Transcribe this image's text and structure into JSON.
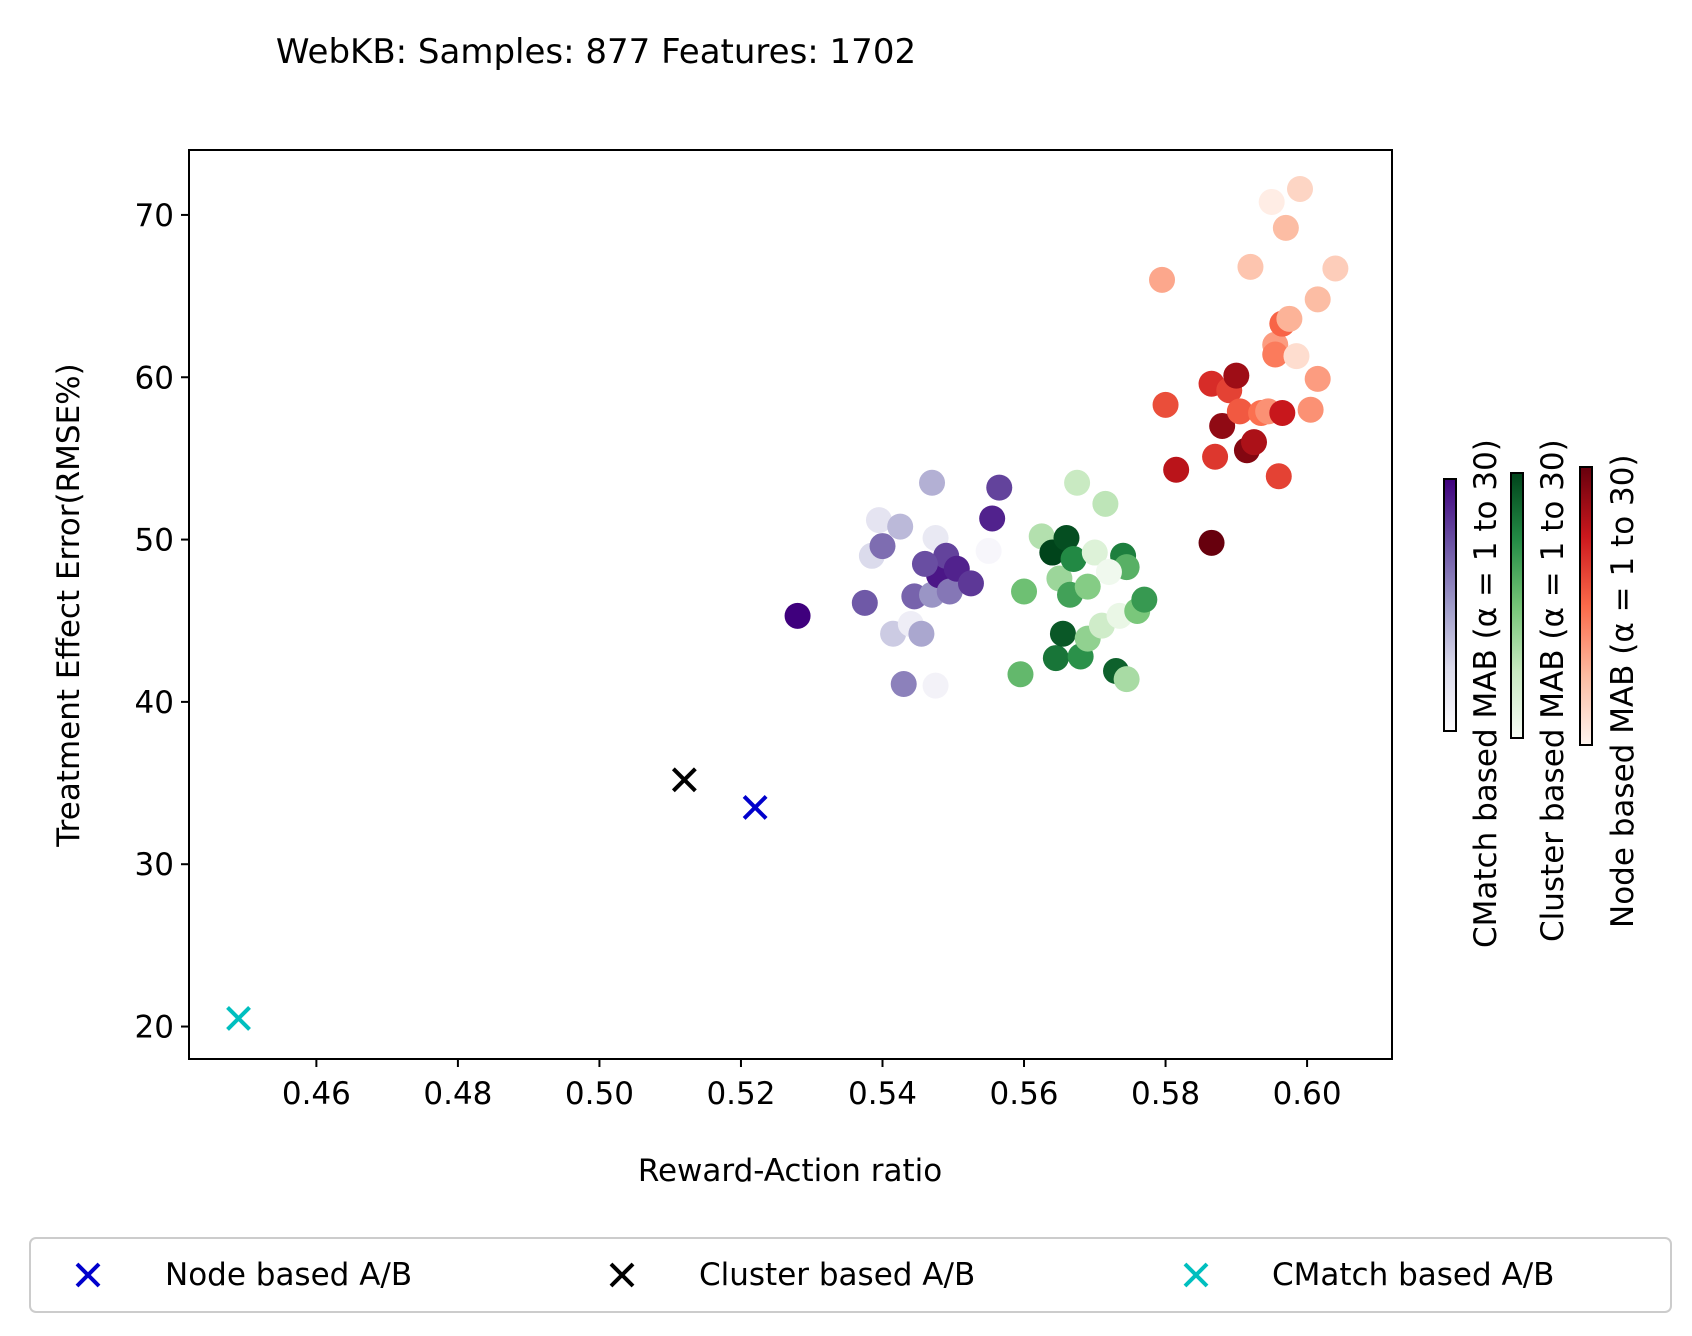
{
  "chart_data": {
    "type": "scatter",
    "title": "WebKB: Samples: 877  Features: 1702",
    "xlabel": "Reward-Action ratio",
    "ylabel": "Treatment Effect Error(RMSE%)",
    "xlim": [
      0.442,
      0.612
    ],
    "ylim": [
      18.0,
      74.0
    ],
    "x_ticks": [
      0.46,
      0.48,
      0.5,
      0.52,
      0.54,
      0.56,
      0.58,
      0.6
    ],
    "y_ticks": [
      20,
      30,
      40,
      50,
      60,
      70
    ],
    "grid": false,
    "legend_position": "bottom",
    "series": [
      {
        "name": "Node based A/B",
        "marker": "x",
        "color": "#0000cc",
        "points": [
          [
            0.522,
            33.5
          ]
        ]
      },
      {
        "name": "Cluster based A/B",
        "marker": "x",
        "color": "#000000",
        "points": [
          [
            0.512,
            35.2
          ]
        ]
      },
      {
        "name": "CMatch based A/B",
        "marker": "x",
        "color": "#00bfbf",
        "points": [
          [
            0.449,
            20.5
          ]
        ]
      }
    ],
    "mab_series": [
      {
        "name": "CMatch based MAB (α = 1 to 30)",
        "colormap": [
          "#fcfbfd",
          "#dadaeb",
          "#9e9ac8",
          "#6a51a3",
          "#3f007d"
        ],
        "points": [
          [
            0.528,
            45.3,
            30
          ],
          [
            0.5375,
            46.1,
            22
          ],
          [
            0.5385,
            49.0,
            8
          ],
          [
            0.5395,
            51.2,
            6
          ],
          [
            0.54,
            49.6,
            20
          ],
          [
            0.5415,
            44.2,
            10
          ],
          [
            0.5425,
            50.8,
            12
          ],
          [
            0.543,
            41.1,
            18
          ],
          [
            0.544,
            44.8,
            4
          ],
          [
            0.5445,
            46.5,
            21
          ],
          [
            0.5455,
            44.2,
            14
          ],
          [
            0.547,
            53.5,
            13
          ],
          [
            0.5475,
            50.1,
            5
          ],
          [
            0.547,
            46.6,
            16
          ],
          [
            0.5475,
            41.0,
            3
          ],
          [
            0.548,
            47.8,
            28
          ],
          [
            0.549,
            49.0,
            24
          ],
          [
            0.5495,
            46.8,
            19
          ],
          [
            0.5505,
            48.2,
            27
          ],
          [
            0.5525,
            47.3,
            25
          ],
          [
            0.555,
            49.3,
            2
          ],
          [
            0.5555,
            51.3,
            27
          ],
          [
            0.5565,
            53.2,
            24
          ],
          [
            0.546,
            48.5,
            23
          ]
        ]
      },
      {
        "name": "Cluster based MAB (α = 1 to 30)",
        "colormap": [
          "#f7fcf5",
          "#c7e9c0",
          "#74c476",
          "#238b45",
          "#00441b"
        ],
        "points": [
          [
            0.5595,
            41.7,
            17
          ],
          [
            0.56,
            46.8,
            16
          ],
          [
            0.5625,
            50.2,
            10
          ],
          [
            0.564,
            49.2,
            30
          ],
          [
            0.5645,
            42.7,
            25
          ],
          [
            0.565,
            47.6,
            12
          ],
          [
            0.5655,
            44.2,
            28
          ],
          [
            0.566,
            50.1,
            29
          ],
          [
            0.5665,
            46.6,
            20
          ],
          [
            0.567,
            48.8,
            23
          ],
          [
            0.5675,
            53.5,
            8
          ],
          [
            0.568,
            42.8,
            22
          ],
          [
            0.569,
            43.9,
            13
          ],
          [
            0.569,
            47.1,
            14
          ],
          [
            0.57,
            49.2,
            5
          ],
          [
            0.571,
            44.7,
            7
          ],
          [
            0.5715,
            52.2,
            9
          ],
          [
            0.573,
            41.9,
            27
          ],
          [
            0.5735,
            45.3,
            3
          ],
          [
            0.574,
            49.0,
            24
          ],
          [
            0.5745,
            48.3,
            18
          ],
          [
            0.5745,
            41.4,
            11
          ],
          [
            0.576,
            45.6,
            15
          ],
          [
            0.577,
            46.3,
            21
          ],
          [
            0.572,
            48.0,
            2
          ]
        ]
      },
      {
        "name": "Node based MAB (α = 1 to 30)",
        "colormap": [
          "#fff5f0",
          "#fcbba1",
          "#fb6a4a",
          "#cb181d",
          "#67000d"
        ],
        "points": [
          [
            0.5795,
            66.0,
            10
          ],
          [
            0.58,
            58.3,
            18
          ],
          [
            0.5815,
            54.3,
            24
          ],
          [
            0.5865,
            49.8,
            30
          ],
          [
            0.5865,
            59.6,
            21
          ],
          [
            0.587,
            55.1,
            20
          ],
          [
            0.588,
            57.0,
            27
          ],
          [
            0.589,
            59.2,
            19
          ],
          [
            0.59,
            60.1,
            26
          ],
          [
            0.5905,
            57.9,
            17
          ],
          [
            0.5915,
            55.5,
            28
          ],
          [
            0.592,
            66.8,
            7
          ],
          [
            0.5925,
            56.0,
            25
          ],
          [
            0.5935,
            57.8,
            15
          ],
          [
            0.5945,
            57.9,
            12
          ],
          [
            0.595,
            70.8,
            2
          ],
          [
            0.5955,
            62.0,
            11
          ],
          [
            0.5955,
            61.4,
            14
          ],
          [
            0.596,
            53.9,
            19
          ],
          [
            0.5965,
            63.3,
            16
          ],
          [
            0.5965,
            57.8,
            23
          ],
          [
            0.597,
            69.2,
            8
          ],
          [
            0.5975,
            63.6,
            9
          ],
          [
            0.5985,
            61.3,
            4
          ],
          [
            0.599,
            71.6,
            5
          ],
          [
            0.6005,
            58.0,
            12
          ],
          [
            0.6015,
            64.8,
            8
          ],
          [
            0.6015,
            59.9,
            11
          ],
          [
            0.604,
            66.7,
            6
          ]
        ]
      }
    ]
  }
}
